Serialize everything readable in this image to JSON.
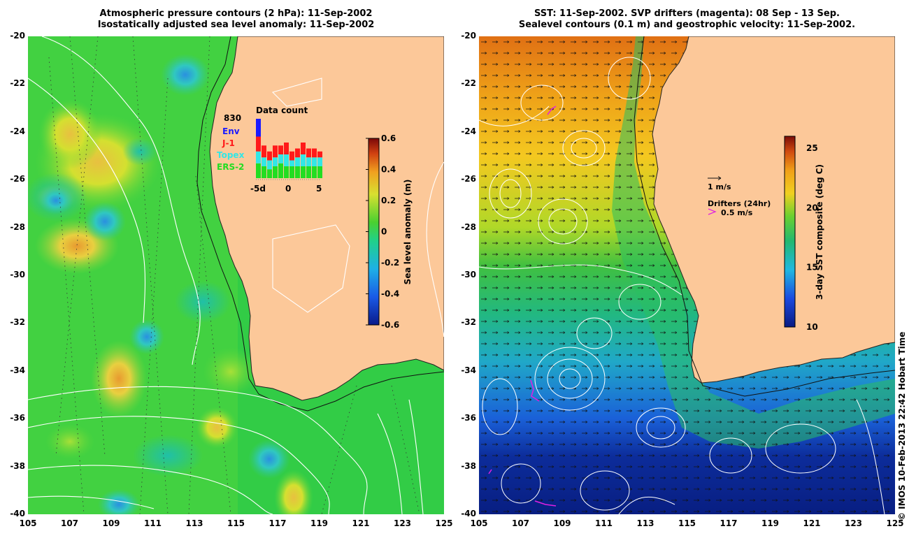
{
  "left_panel": {
    "title_line1": "Atmospheric pressure contours (2 hPa): 11-Sep-2002",
    "title_line2": "Isostatically adjusted sea level anomaly: 11-Sep-2002",
    "colorbar": {
      "label": "Sea level anomaly (m)",
      "ticks": [
        "0.6",
        "0.4",
        "0.2",
        "0",
        "-0.2",
        "-0.4",
        "-0.6"
      ],
      "range": [
        -0.6,
        0.6
      ]
    },
    "data_count": {
      "title": "Data count",
      "max_label": "830",
      "legend": [
        {
          "name": "Env",
          "color": "#1a1aff"
        },
        {
          "name": "J-1",
          "color": "#ff1a1a"
        },
        {
          "name": "Topex",
          "color": "#33e6e6"
        },
        {
          "name": "ERS-2",
          "color": "#22dd22"
        }
      ],
      "x_labels": [
        "-5d",
        "0",
        "5"
      ],
      "bars": [
        {
          "env": 0.3,
          "j1": 0.25,
          "topex": 0.2,
          "ers2": 0.25
        },
        {
          "env": 0.0,
          "j1": 0.2,
          "topex": 0.15,
          "ers2": 0.2
        },
        {
          "env": 0.0,
          "j1": 0.15,
          "topex": 0.15,
          "ers2": 0.15
        },
        {
          "env": 0.0,
          "j1": 0.2,
          "topex": 0.15,
          "ers2": 0.2
        },
        {
          "env": 0.0,
          "j1": 0.15,
          "topex": 0.15,
          "ers2": 0.25
        },
        {
          "env": 0.0,
          "j1": 0.2,
          "topex": 0.2,
          "ers2": 0.2
        },
        {
          "env": 0.0,
          "j1": 0.15,
          "topex": 0.1,
          "ers2": 0.2
        },
        {
          "env": 0.0,
          "j1": 0.15,
          "topex": 0.15,
          "ers2": 0.2
        },
        {
          "env": 0.0,
          "j1": 0.2,
          "topex": 0.2,
          "ers2": 0.2
        },
        {
          "env": 0.0,
          "j1": 0.15,
          "topex": 0.15,
          "ers2": 0.2
        },
        {
          "env": 0.0,
          "j1": 0.15,
          "topex": 0.15,
          "ers2": 0.2
        },
        {
          "env": 0.0,
          "j1": 0.1,
          "topex": 0.15,
          "ers2": 0.2
        }
      ]
    }
  },
  "right_panel": {
    "title_line1": "SST: 11-Sep-2002. SVP drifters (magenta): 08 Sep - 13 Sep.",
    "title_line2": "Sealevel contours (0.1 m) and geostrophic velocity: 11-Sep-2002.",
    "colorbar": {
      "label": "3-day SST composite (deg C)",
      "ticks": [
        "25",
        "20",
        "15",
        "10"
      ],
      "range": [
        10,
        26
      ]
    },
    "velocity_legend": "1 m/s",
    "drifters_legend": "Drifters (24hr)",
    "drifters_speed": "0.5 m/s"
  },
  "axes": {
    "y_ticks": [
      "-20",
      "-22",
      "-24",
      "-26",
      "-28",
      "-30",
      "-32",
      "-34",
      "-36",
      "-38",
      "-40"
    ],
    "x_ticks": [
      "105",
      "107",
      "109",
      "111",
      "113",
      "115",
      "117",
      "119",
      "121",
      "123",
      "125"
    ]
  },
  "credit": "© IMOS 10-Feb-2013 22:42 Hobart Time",
  "colors": {
    "land": "#fcc899",
    "ocean_base_left": "#2ccf4a",
    "ocean_base_right": "#2ad06a"
  }
}
